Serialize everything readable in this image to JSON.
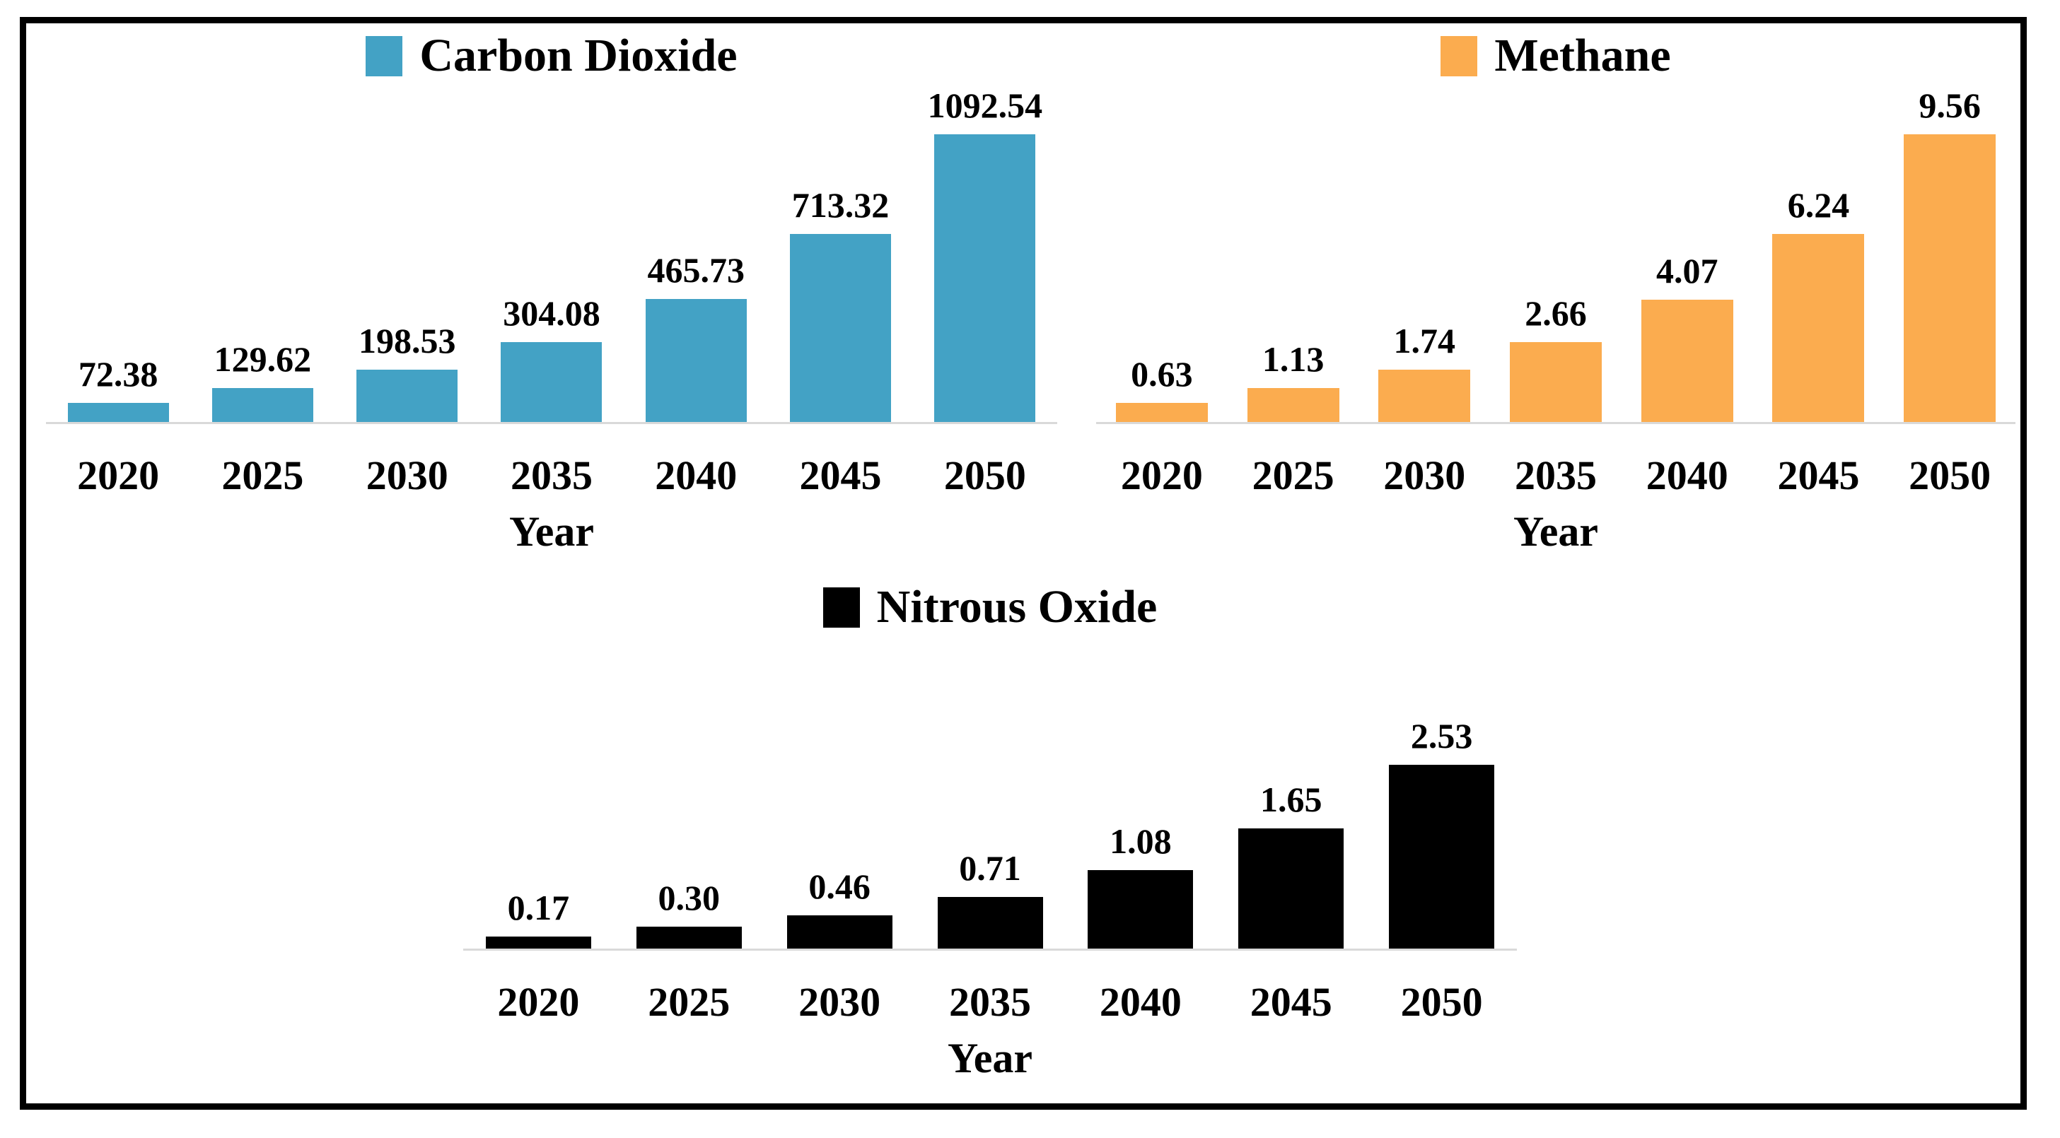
{
  "figure": {
    "background": "#ffffff",
    "border_color": "#000000",
    "axis_line_color": "#d9d9d9"
  },
  "chart_data": [
    {
      "type": "bar",
      "legend": "Carbon Dioxide",
      "color": "#43a2c5",
      "categories": [
        "2020",
        "2025",
        "2030",
        "2035",
        "2040",
        "2045",
        "2050"
      ],
      "values": [
        72.38,
        129.62,
        198.53,
        304.08,
        465.73,
        713.32,
        1092.54
      ],
      "labels": [
        "72.38",
        "129.62",
        "198.53",
        "304.08",
        "465.73",
        "713.32",
        "1092.54"
      ],
      "xlabel": "Year",
      "ylabel": "",
      "ylim": [
        0,
        1280
      ],
      "grid": false,
      "legend_position": "top",
      "data_labels": true,
      "y_axis_shown": false
    },
    {
      "type": "bar",
      "legend": "Methane",
      "color": "#fbac4f",
      "categories": [
        "2020",
        "2025",
        "2030",
        "2035",
        "2040",
        "2045",
        "2050"
      ],
      "values": [
        0.63,
        1.13,
        1.74,
        2.66,
        4.07,
        6.24,
        9.56
      ],
      "labels": [
        "0.63",
        "1.13",
        "1.74",
        "2.66",
        "4.07",
        "6.24",
        "9.56"
      ],
      "xlabel": "Year",
      "ylabel": "",
      "ylim": [
        0,
        11.2
      ],
      "grid": false,
      "legend_position": "top",
      "data_labels": true,
      "y_axis_shown": false
    },
    {
      "type": "bar",
      "legend": "Nitrous Oxide",
      "color": "#000000",
      "categories": [
        "2020",
        "2025",
        "2030",
        "2035",
        "2040",
        "2045",
        "2050"
      ],
      "values": [
        0.17,
        0.3,
        0.46,
        0.71,
        1.08,
        1.65,
        2.53
      ],
      "labels": [
        "0.17",
        "0.30",
        "0.46",
        "0.71",
        "1.08",
        "1.65",
        "2.53"
      ],
      "xlabel": "Year",
      "ylabel": "",
      "ylim": [
        0,
        4.3
      ],
      "grid": false,
      "legend_position": "top",
      "data_labels": true,
      "y_axis_shown": false
    }
  ]
}
